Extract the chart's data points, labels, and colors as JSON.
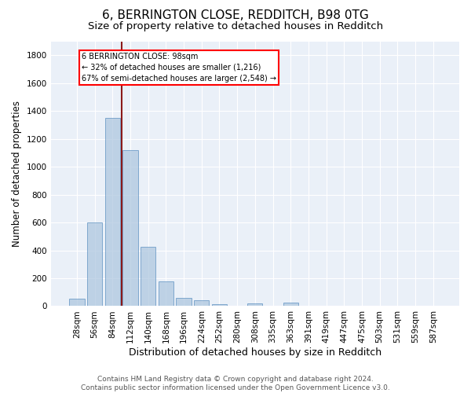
{
  "title": "6, BERRINGTON CLOSE, REDDITCH, B98 0TG",
  "subtitle": "Size of property relative to detached houses in Redditch",
  "xlabel": "Distribution of detached houses by size in Redditch",
  "ylabel": "Number of detached properties",
  "footer_line1": "Contains HM Land Registry data © Crown copyright and database right 2024.",
  "footer_line2": "Contains public sector information licensed under the Open Government Licence v3.0.",
  "bin_labels": [
    "28sqm",
    "56sqm",
    "84sqm",
    "112sqm",
    "140sqm",
    "168sqm",
    "196sqm",
    "224sqm",
    "252sqm",
    "280sqm",
    "308sqm",
    "335sqm",
    "363sqm",
    "391sqm",
    "419sqm",
    "447sqm",
    "475sqm",
    "503sqm",
    "531sqm",
    "559sqm",
    "587sqm"
  ],
  "bar_values": [
    55,
    600,
    1350,
    1120,
    425,
    175,
    60,
    40,
    15,
    0,
    20,
    0,
    25,
    0,
    0,
    0,
    0,
    0,
    0,
    0,
    0
  ],
  "bar_color": "#aac4de",
  "bar_edge_color": "#5a8fc0",
  "bar_alpha": 0.7,
  "vline_color": "#8b1a1a",
  "annotation_text": "6 BERRINGTON CLOSE: 98sqm\n← 32% of detached houses are smaller (1,216)\n67% of semi-detached houses are larger (2,548) →",
  "annotation_box_color": "white",
  "annotation_box_edge_color": "red",
  "ylim": [
    0,
    1900
  ],
  "yticks": [
    0,
    200,
    400,
    600,
    800,
    1000,
    1200,
    1400,
    1600,
    1800
  ],
  "background_color": "#eaf0f8",
  "grid_color": "white",
  "title_fontsize": 11,
  "subtitle_fontsize": 9.5,
  "xlabel_fontsize": 9,
  "ylabel_fontsize": 8.5,
  "tick_fontsize": 7.5,
  "footer_fontsize": 6.5
}
